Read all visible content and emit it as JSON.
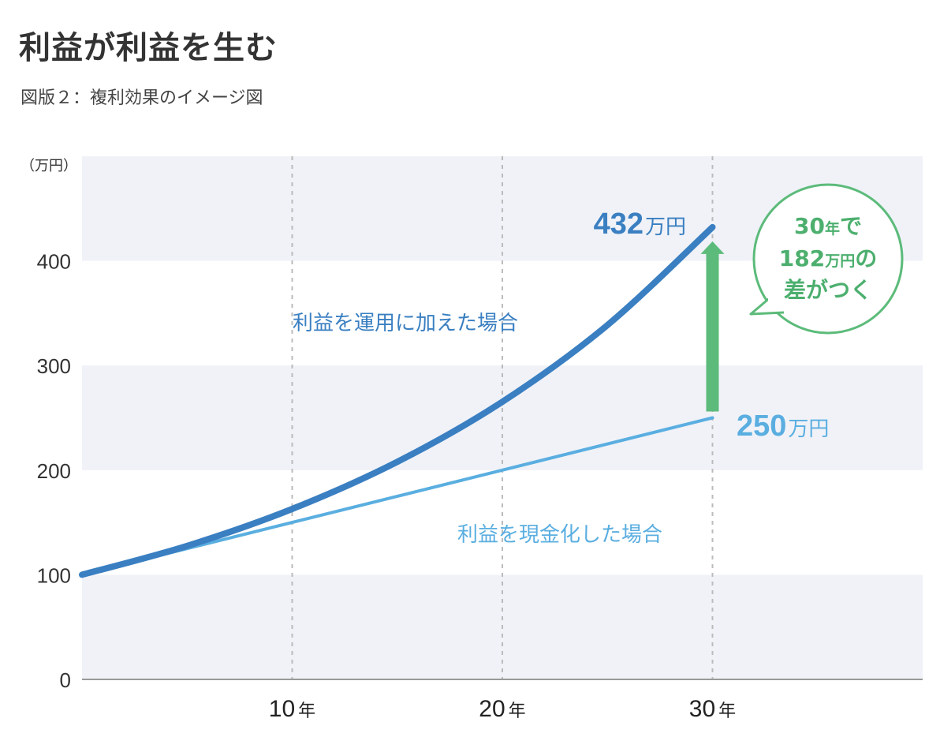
{
  "title": "利益が利益を生む",
  "subtitle": "図版２：複利効果のイメージ図",
  "colors": {
    "compound": "#3a7fc1",
    "simple": "#5aaee0",
    "arrow": "#5cbb7a",
    "band": "#f0f2f8",
    "grid": "#bbbbbb",
    "axis": "#999999"
  },
  "chart_data": {
    "type": "line",
    "y_unit_label": "（万円）",
    "ylim": [
      0,
      500
    ],
    "yticks": [
      "0",
      "100",
      "200",
      "300",
      "400"
    ],
    "xlim": [
      0,
      40
    ],
    "xticks": [
      {
        "value": 10,
        "num": "10",
        "unit": "年"
      },
      {
        "value": 20,
        "num": "20",
        "unit": "年"
      },
      {
        "value": 30,
        "num": "30",
        "unit": "年"
      }
    ],
    "series": [
      {
        "name": "利益を運用に加えた場合",
        "style": "compound",
        "x": [
          0,
          5,
          10,
          15,
          20,
          25,
          30
        ],
        "y": [
          100,
          127.6,
          162.9,
          207.9,
          265.3,
          338.6,
          432.2
        ]
      },
      {
        "name": "利益を現金化した場合",
        "style": "simple",
        "x": [
          0,
          30
        ],
        "y": [
          100,
          250
        ]
      }
    ],
    "annotations": {
      "compound_end": {
        "num": "432",
        "unit": "万円"
      },
      "simple_end": {
        "num": "250",
        "unit": "万円"
      },
      "callout": [
        {
          "parts": [
            {
              "t": "30",
              "big": true
            },
            {
              "t": "年",
              "big": false
            },
            {
              "t": "で",
              "big": true
            }
          ]
        },
        {
          "parts": [
            {
              "t": "182",
              "big": true
            },
            {
              "t": "万円",
              "big": false
            },
            {
              "t": "の",
              "big": true
            }
          ]
        },
        {
          "parts": [
            {
              "t": "差がつく",
              "big": true
            }
          ]
        }
      ]
    }
  }
}
